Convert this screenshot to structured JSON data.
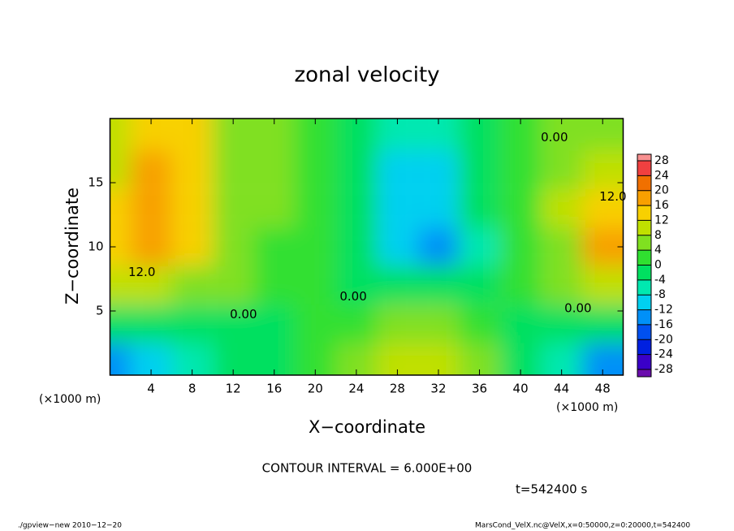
{
  "chart_data": {
    "type": "contour",
    "title": "zonal velocity",
    "x_label": "X−coordinate",
    "y_label": "Z−coordinate",
    "x_unit": "(×1000 m)",
    "xlim": [
      0,
      50
    ],
    "ylim": [
      0,
      20
    ],
    "xticks": [
      4,
      8,
      12,
      16,
      20,
      24,
      28,
      32,
      36,
      40,
      44,
      48
    ],
    "yticks": [
      5,
      10,
      15
    ],
    "x": [
      0,
      4,
      8,
      12,
      16,
      20,
      24,
      28,
      32,
      36,
      40,
      44,
      48
    ],
    "z": [
      1,
      4,
      7,
      10,
      13,
      16,
      19
    ],
    "values": [
      [
        -14,
        -12,
        -8,
        -4,
        -1,
        2,
        6,
        8,
        8,
        4,
        -4,
        -8,
        -14
      ],
      [
        -4,
        -4,
        -3,
        -2,
        -1,
        0,
        2,
        4,
        4,
        2,
        -2,
        -4,
        -4
      ],
      [
        8,
        8,
        6,
        4,
        2,
        1,
        -2,
        -4,
        -4,
        -2,
        0,
        4,
        8
      ],
      [
        12,
        16,
        12,
        6,
        3,
        2,
        -3,
        -9,
        -13,
        -6,
        2,
        6,
        16
      ],
      [
        12,
        18,
        14,
        6,
        4,
        2,
        -4,
        -10,
        -10,
        -4,
        2,
        8,
        12
      ],
      [
        10,
        17,
        14,
        6,
        4,
        2,
        -4,
        -10,
        -9,
        -3,
        2,
        6,
        10
      ],
      [
        8,
        14,
        12,
        6,
        4,
        2,
        -2,
        -6,
        -6,
        -2,
        2,
        4,
        6
      ]
    ],
    "colorbar": {
      "ticks": [
        28,
        24,
        20,
        16,
        12,
        8,
        4,
        0,
        -4,
        -8,
        -12,
        -16,
        -20,
        -24,
        -28
      ],
      "colors": [
        "#f89090",
        "#f04040",
        "#f07000",
        "#f8a000",
        "#f8d000",
        "#c0e000",
        "#80e020",
        "#30e030",
        "#00e060",
        "#00e8b0",
        "#00d0f0",
        "#0090f8",
        "#0050f0",
        "#0020e0",
        "#3a00c8",
        "#6a0dad"
      ]
    },
    "contour_labels": [
      {
        "text": "0.00",
        "x": 13.0,
        "z": 4.7
      },
      {
        "text": "0.00",
        "x": 23.7,
        "z": 6.1
      },
      {
        "text": "0.00",
        "x": 45.6,
        "z": 5.2
      },
      {
        "text": "0.00",
        "x": 43.3,
        "z": 18.5
      },
      {
        "text": "12.0",
        "x": 3.1,
        "z": 8.0
      },
      {
        "text": "12.0",
        "x": 49.0,
        "z": 13.9
      }
    ],
    "contour_interval": "CONTOUR INTERVAL = 6.000E+00",
    "time": "t=542400 s",
    "footer_left": "./gpview−new  2010−12−20",
    "footer_right": "MarsCond_VelX.nc@VelX,x=0:50000,z=0:20000,t=542400"
  }
}
